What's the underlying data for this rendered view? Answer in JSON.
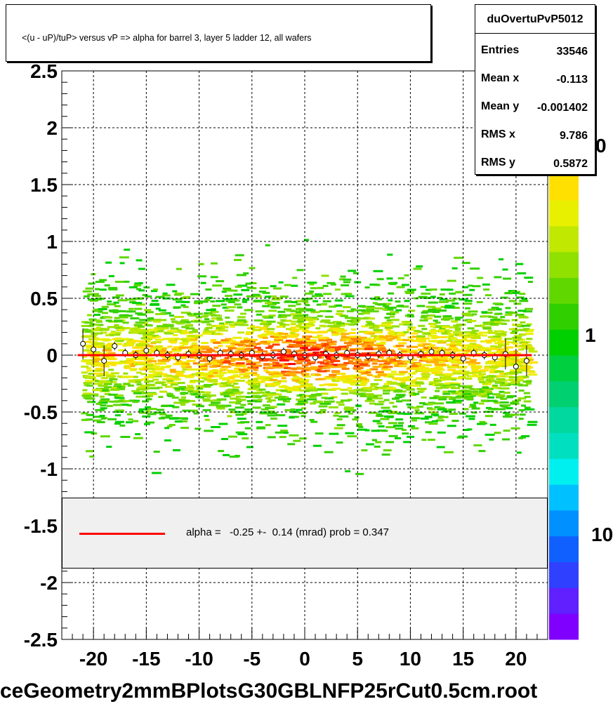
{
  "title": "<(u - uP)/tuP> versus   vP => alpha for barrel 3, layer 5 ladder 12, all wafers",
  "stats": {
    "name": "duOvertuPvP5012",
    "rows": [
      {
        "key": "Entries",
        "value": "33546"
      },
      {
        "key": "Mean x",
        "value": "-0.113"
      },
      {
        "key": "Mean y",
        "value": "-0.001402"
      },
      {
        "key": "RMS x",
        "value": "9.786"
      },
      {
        "key": "RMS y",
        "value": "0.5872"
      }
    ]
  },
  "legend": {
    "fit_label": "alpha =   -0.25 +-  0.14 (mrad) prob = 0.347",
    "fit_color": "#ff0000"
  },
  "file_title": "ceGeometry2mmBPlotsG30GBLNFP25rCut0.5cm.root",
  "z_axis_labels": [
    "0",
    "1",
    "10"
  ],
  "chart_data": {
    "type": "heatmap",
    "xlim": [
      -23,
      23
    ],
    "ylim": [
      -2.5,
      2.5
    ],
    "x_ticks": [
      "-20",
      "-15",
      "-10",
      "-5",
      "0",
      "5",
      "10",
      "15",
      "20"
    ],
    "y_ticks": [
      "2.5",
      "2",
      "1.5",
      "1",
      "0.5",
      "0",
      "-0.5",
      "-1",
      "-1.5",
      "-2",
      "-2.5"
    ],
    "grid": true,
    "colors": {
      "palette": [
        "#8000ff",
        "#6020ff",
        "#3040ff",
        "#1060ff",
        "#0090ff",
        "#00c0ff",
        "#00f0f0",
        "#00e0c0",
        "#00d8a0",
        "#00d070",
        "#00d040",
        "#00d000",
        "#30d000",
        "#60d800",
        "#90e000",
        "#c0e800",
        "#e8f000",
        "#ffe000",
        "#ffb000",
        "#ff8000",
        "#ff4000",
        "#ff0000"
      ]
    },
    "profile": {
      "x": [
        -21,
        -20,
        -19,
        -18,
        -17,
        -16,
        -15,
        -14,
        -13,
        -12,
        -11,
        -10,
        -9,
        -8,
        -7,
        -6,
        -5,
        -4,
        -3,
        -2,
        -1,
        0,
        1,
        2,
        3,
        4,
        5,
        6,
        7,
        8,
        9,
        10,
        11,
        12,
        13,
        14,
        15,
        16,
        17,
        18,
        19,
        20,
        21
      ],
      "y": [
        0.1,
        0.05,
        -0.05,
        0.08,
        0.02,
        0.0,
        0.04,
        0.02,
        0.0,
        -0.02,
        0.01,
        0.0,
        -0.03,
        0.02,
        0.01,
        0.0,
        0.02,
        -0.01,
        0.0,
        0.03,
        0.01,
        0.0,
        -0.02,
        0.01,
        0.0,
        0.02,
        0.0,
        -0.01,
        0.01,
        0.02,
        0.0,
        -0.02,
        0.01,
        0.03,
        0.02,
        0.0,
        -0.03,
        0.02,
        0.0,
        -0.02,
        0.01,
        -0.1,
        -0.05
      ]
    },
    "fit": {
      "y": 0.0,
      "color": "#ff0000"
    }
  }
}
